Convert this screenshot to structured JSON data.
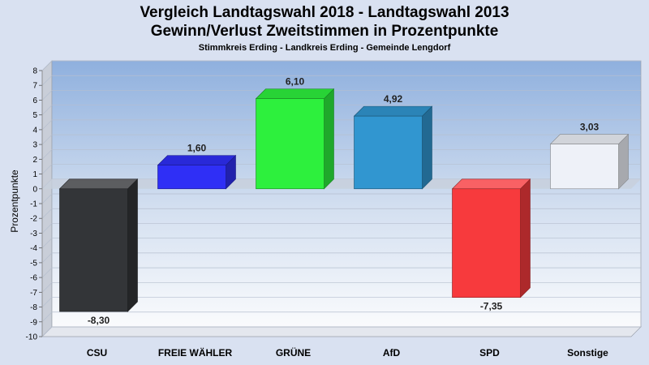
{
  "chart_data": {
    "type": "bar",
    "title": "Vergleich Landtagswahl 2018 - Landtagswahl 2013",
    "title2": "Gewinn/Verlust Zweitstimmen in Prozentpunkte",
    "subtitle": "Stimmkreis Erding - Landkreis Erding - Gemeinde Lengdorf",
    "ylabel": "Prozentpunkte",
    "xlabel": "",
    "ylim": [
      -10,
      8
    ],
    "yticks": [
      8,
      7,
      6,
      5,
      4,
      3,
      2,
      1,
      0,
      -1,
      -2,
      -3,
      -4,
      -5,
      -6,
      -7,
      -8,
      -9,
      -10
    ],
    "grid": true,
    "categories": [
      "CSU",
      "FREIE WÄHLER",
      "GRÜNE",
      "AfD",
      "SPD",
      "Sonstige"
    ],
    "values": [
      -8.3,
      1.6,
      6.1,
      4.92,
      -7.35,
      3.03
    ],
    "value_labels": [
      "-8,30",
      "1,60",
      "6,10",
      "4,92",
      "-7,35",
      "3,03"
    ],
    "colors": [
      "#333538",
      "#2f2ff6",
      "#2df03d",
      "#3196d0",
      "#f73a3d",
      "#eef1f8"
    ]
  }
}
